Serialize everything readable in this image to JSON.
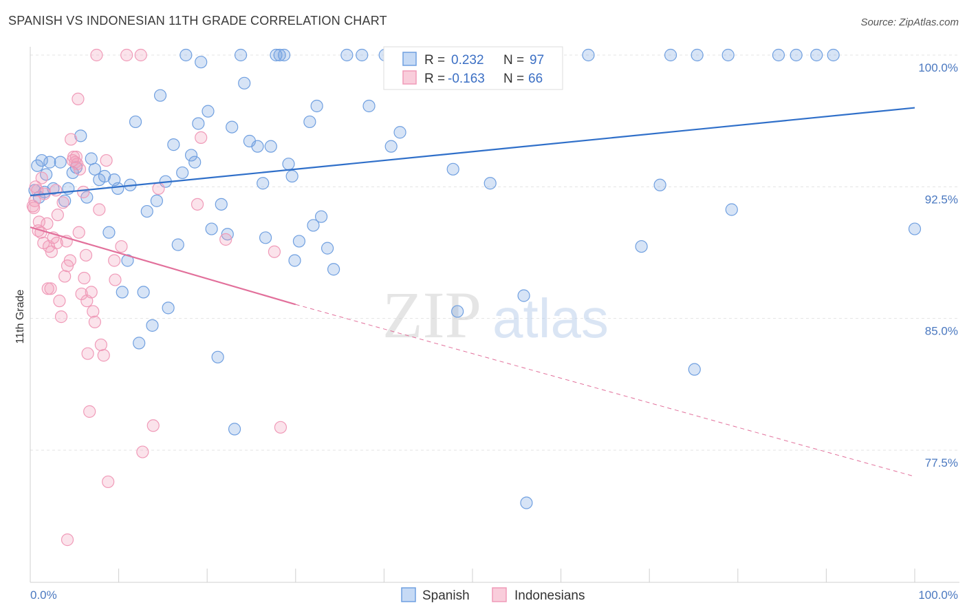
{
  "title": "SPANISH VS INDONESIAN 11TH GRADE CORRELATION CHART",
  "source": "Source: ZipAtlas.com",
  "chart_data": {
    "type": "scatter",
    "ylabel": "11th Grade",
    "xlim": [
      0,
      100
    ],
    "ylim": [
      71,
      101
    ],
    "y_ticks": [
      77.5,
      85.0,
      92.5,
      100.0
    ],
    "y_tick_labels": [
      "77.5%",
      "85.0%",
      "92.5%",
      "100.0%"
    ],
    "x_tick_labels": [
      "0.0%",
      "100.0%"
    ],
    "grid": true,
    "watermark": {
      "zip": "ZIP",
      "atlas": "atlas"
    },
    "legend": {
      "items": [
        {
          "r_label": "R =",
          "r_value": "0.232",
          "n_label": "N =",
          "n_value": "97"
        },
        {
          "r_label": "R =",
          "r_value": "-0.163",
          "n_label": "N =",
          "n_value": "66"
        }
      ],
      "placement": "top-center"
    },
    "series": [
      {
        "name": "Spanish",
        "color": "#6f9fe0",
        "line_color": "#2f6fc9",
        "trend": {
          "x1": 0,
          "y1": 92.0,
          "x2": 100,
          "y2": 97.0
        },
        "points": [
          [
            0.5,
            92.3
          ],
          [
            0.8,
            93.7
          ],
          [
            1.0,
            91.9
          ],
          [
            1.3,
            94.0
          ],
          [
            1.6,
            92.2
          ],
          [
            1.8,
            93.2
          ],
          [
            2.2,
            93.9
          ],
          [
            2.6,
            92.4
          ],
          [
            3.4,
            93.9
          ],
          [
            3.9,
            91.7
          ],
          [
            4.3,
            92.4
          ],
          [
            4.8,
            93.3
          ],
          [
            5.2,
            93.6
          ],
          [
            5.7,
            95.4
          ],
          [
            6.4,
            91.9
          ],
          [
            6.9,
            94.1
          ],
          [
            7.3,
            93.5
          ],
          [
            7.8,
            92.9
          ],
          [
            8.4,
            93.1
          ],
          [
            8.9,
            89.9
          ],
          [
            9.5,
            92.9
          ],
          [
            9.9,
            92.4
          ],
          [
            10.4,
            86.5
          ],
          [
            11.0,
            88.3
          ],
          [
            11.3,
            92.6
          ],
          [
            11.9,
            96.2
          ],
          [
            12.3,
            83.6
          ],
          [
            12.8,
            86.5
          ],
          [
            13.2,
            91.1
          ],
          [
            13.8,
            84.6
          ],
          [
            14.3,
            91.7
          ],
          [
            14.7,
            97.7
          ],
          [
            15.3,
            92.8
          ],
          [
            15.6,
            85.6
          ],
          [
            16.2,
            94.9
          ],
          [
            16.7,
            89.2
          ],
          [
            17.2,
            93.3
          ],
          [
            17.6,
            100.0
          ],
          [
            18.2,
            94.3
          ],
          [
            18.6,
            93.9
          ],
          [
            19.0,
            96.1
          ],
          [
            19.3,
            99.6
          ],
          [
            20.1,
            96.8
          ],
          [
            20.5,
            90.1
          ],
          [
            21.2,
            82.8
          ],
          [
            21.6,
            91.5
          ],
          [
            22.3,
            89.8
          ],
          [
            22.8,
            95.9
          ],
          [
            23.1,
            78.7
          ],
          [
            23.8,
            100.0
          ],
          [
            24.2,
            98.4
          ],
          [
            24.8,
            95.1
          ],
          [
            25.7,
            94.8
          ],
          [
            26.3,
            92.7
          ],
          [
            26.6,
            89.6
          ],
          [
            27.2,
            94.8
          ],
          [
            27.8,
            100.0
          ],
          [
            28.2,
            100.0
          ],
          [
            28.7,
            100.0
          ],
          [
            29.2,
            93.8
          ],
          [
            29.6,
            93.1
          ],
          [
            29.9,
            88.3
          ],
          [
            30.4,
            89.4
          ],
          [
            31.6,
            96.2
          ],
          [
            32.0,
            90.3
          ],
          [
            32.4,
            97.1
          ],
          [
            32.9,
            90.8
          ],
          [
            33.6,
            89.0
          ],
          [
            34.3,
            87.8
          ],
          [
            35.8,
            100.0
          ],
          [
            37.5,
            100.0
          ],
          [
            38.3,
            97.1
          ],
          [
            40.1,
            100.0
          ],
          [
            40.8,
            94.8
          ],
          [
            41.8,
            95.6
          ],
          [
            43.4,
            100.0
          ],
          [
            44.6,
            99.6
          ],
          [
            44.9,
            100.0
          ],
          [
            47.8,
            93.5
          ],
          [
            48.3,
            85.4
          ],
          [
            51.8,
            100.0
          ],
          [
            52.0,
            92.7
          ],
          [
            52.3,
            100.0
          ],
          [
            55.2,
            100.0
          ],
          [
            55.8,
            86.3
          ],
          [
            56.1,
            74.5
          ],
          [
            63.1,
            100.0
          ],
          [
            69.1,
            89.1
          ],
          [
            71.2,
            92.6
          ],
          [
            72.4,
            100.0
          ],
          [
            75.1,
            82.1
          ],
          [
            75.4,
            100.0
          ],
          [
            78.9,
            100.0
          ],
          [
            79.3,
            91.2
          ],
          [
            84.6,
            100.0
          ],
          [
            86.6,
            100.0
          ],
          [
            88.9,
            100.0
          ],
          [
            90.8,
            100.0
          ],
          [
            100.0,
            90.1
          ]
        ]
      },
      {
        "name": "Indonesians",
        "color": "#f09ab8",
        "line_color": "#e2709b",
        "trend": {
          "x1": 0,
          "y1": 90.2,
          "x2": 30,
          "y2": 85.8
        },
        "trend_dashed": {
          "x1": 30,
          "y1": 85.8,
          "x2": 100,
          "y2": 76.0
        },
        "points": [
          [
            0.3,
            91.4
          ],
          [
            0.5,
            91.7
          ],
          [
            0.6,
            92.5
          ],
          [
            0.8,
            92.3
          ],
          [
            0.9,
            90.0
          ],
          [
            1.0,
            90.5
          ],
          [
            1.3,
            93.0
          ],
          [
            1.5,
            89.3
          ],
          [
            1.6,
            92.1
          ],
          [
            1.9,
            90.4
          ],
          [
            2.1,
            89.1
          ],
          [
            2.3,
            86.7
          ],
          [
            2.4,
            88.8
          ],
          [
            2.6,
            89.6
          ],
          [
            2.9,
            92.3
          ],
          [
            3.1,
            90.9
          ],
          [
            3.3,
            86.0
          ],
          [
            3.5,
            85.1
          ],
          [
            3.7,
            91.6
          ],
          [
            3.9,
            87.4
          ],
          [
            4.1,
            89.4
          ],
          [
            4.2,
            88.0
          ],
          [
            4.5,
            88.3
          ],
          [
            4.6,
            95.2
          ],
          [
            4.8,
            94.0
          ],
          [
            4.9,
            94.2
          ],
          [
            5.1,
            93.9
          ],
          [
            5.2,
            94.2
          ],
          [
            5.4,
            97.5
          ],
          [
            5.5,
            89.9
          ],
          [
            5.6,
            93.5
          ],
          [
            5.8,
            86.4
          ],
          [
            6.0,
            92.2
          ],
          [
            6.1,
            87.3
          ],
          [
            6.3,
            88.6
          ],
          [
            6.4,
            86.0
          ],
          [
            6.5,
            83.0
          ],
          [
            6.7,
            79.7
          ],
          [
            6.9,
            86.5
          ],
          [
            7.1,
            85.4
          ],
          [
            7.3,
            84.8
          ],
          [
            7.5,
            100.0
          ],
          [
            7.8,
            91.2
          ],
          [
            8.0,
            83.5
          ],
          [
            8.3,
            82.9
          ],
          [
            8.6,
            94.0
          ],
          [
            8.8,
            75.7
          ],
          [
            9.6,
            87.2
          ],
          [
            10.3,
            89.1
          ],
          [
            10.9,
            100.0
          ],
          [
            12.5,
            100.0
          ],
          [
            12.7,
            77.4
          ],
          [
            13.9,
            78.9
          ],
          [
            14.5,
            92.4
          ],
          [
            18.9,
            91.5
          ],
          [
            19.3,
            95.3
          ],
          [
            22.1,
            89.5
          ],
          [
            27.6,
            88.8
          ],
          [
            28.3,
            78.8
          ],
          [
            4.2,
            72.4
          ],
          [
            2.0,
            86.7
          ],
          [
            1.2,
            89.9
          ],
          [
            3.0,
            89.3
          ],
          [
            0.4,
            91.3
          ],
          [
            5.3,
            93.8
          ],
          [
            9.5,
            88.3
          ]
        ]
      }
    ],
    "bottom_legend": [
      "Spanish",
      "Indonesians"
    ]
  }
}
